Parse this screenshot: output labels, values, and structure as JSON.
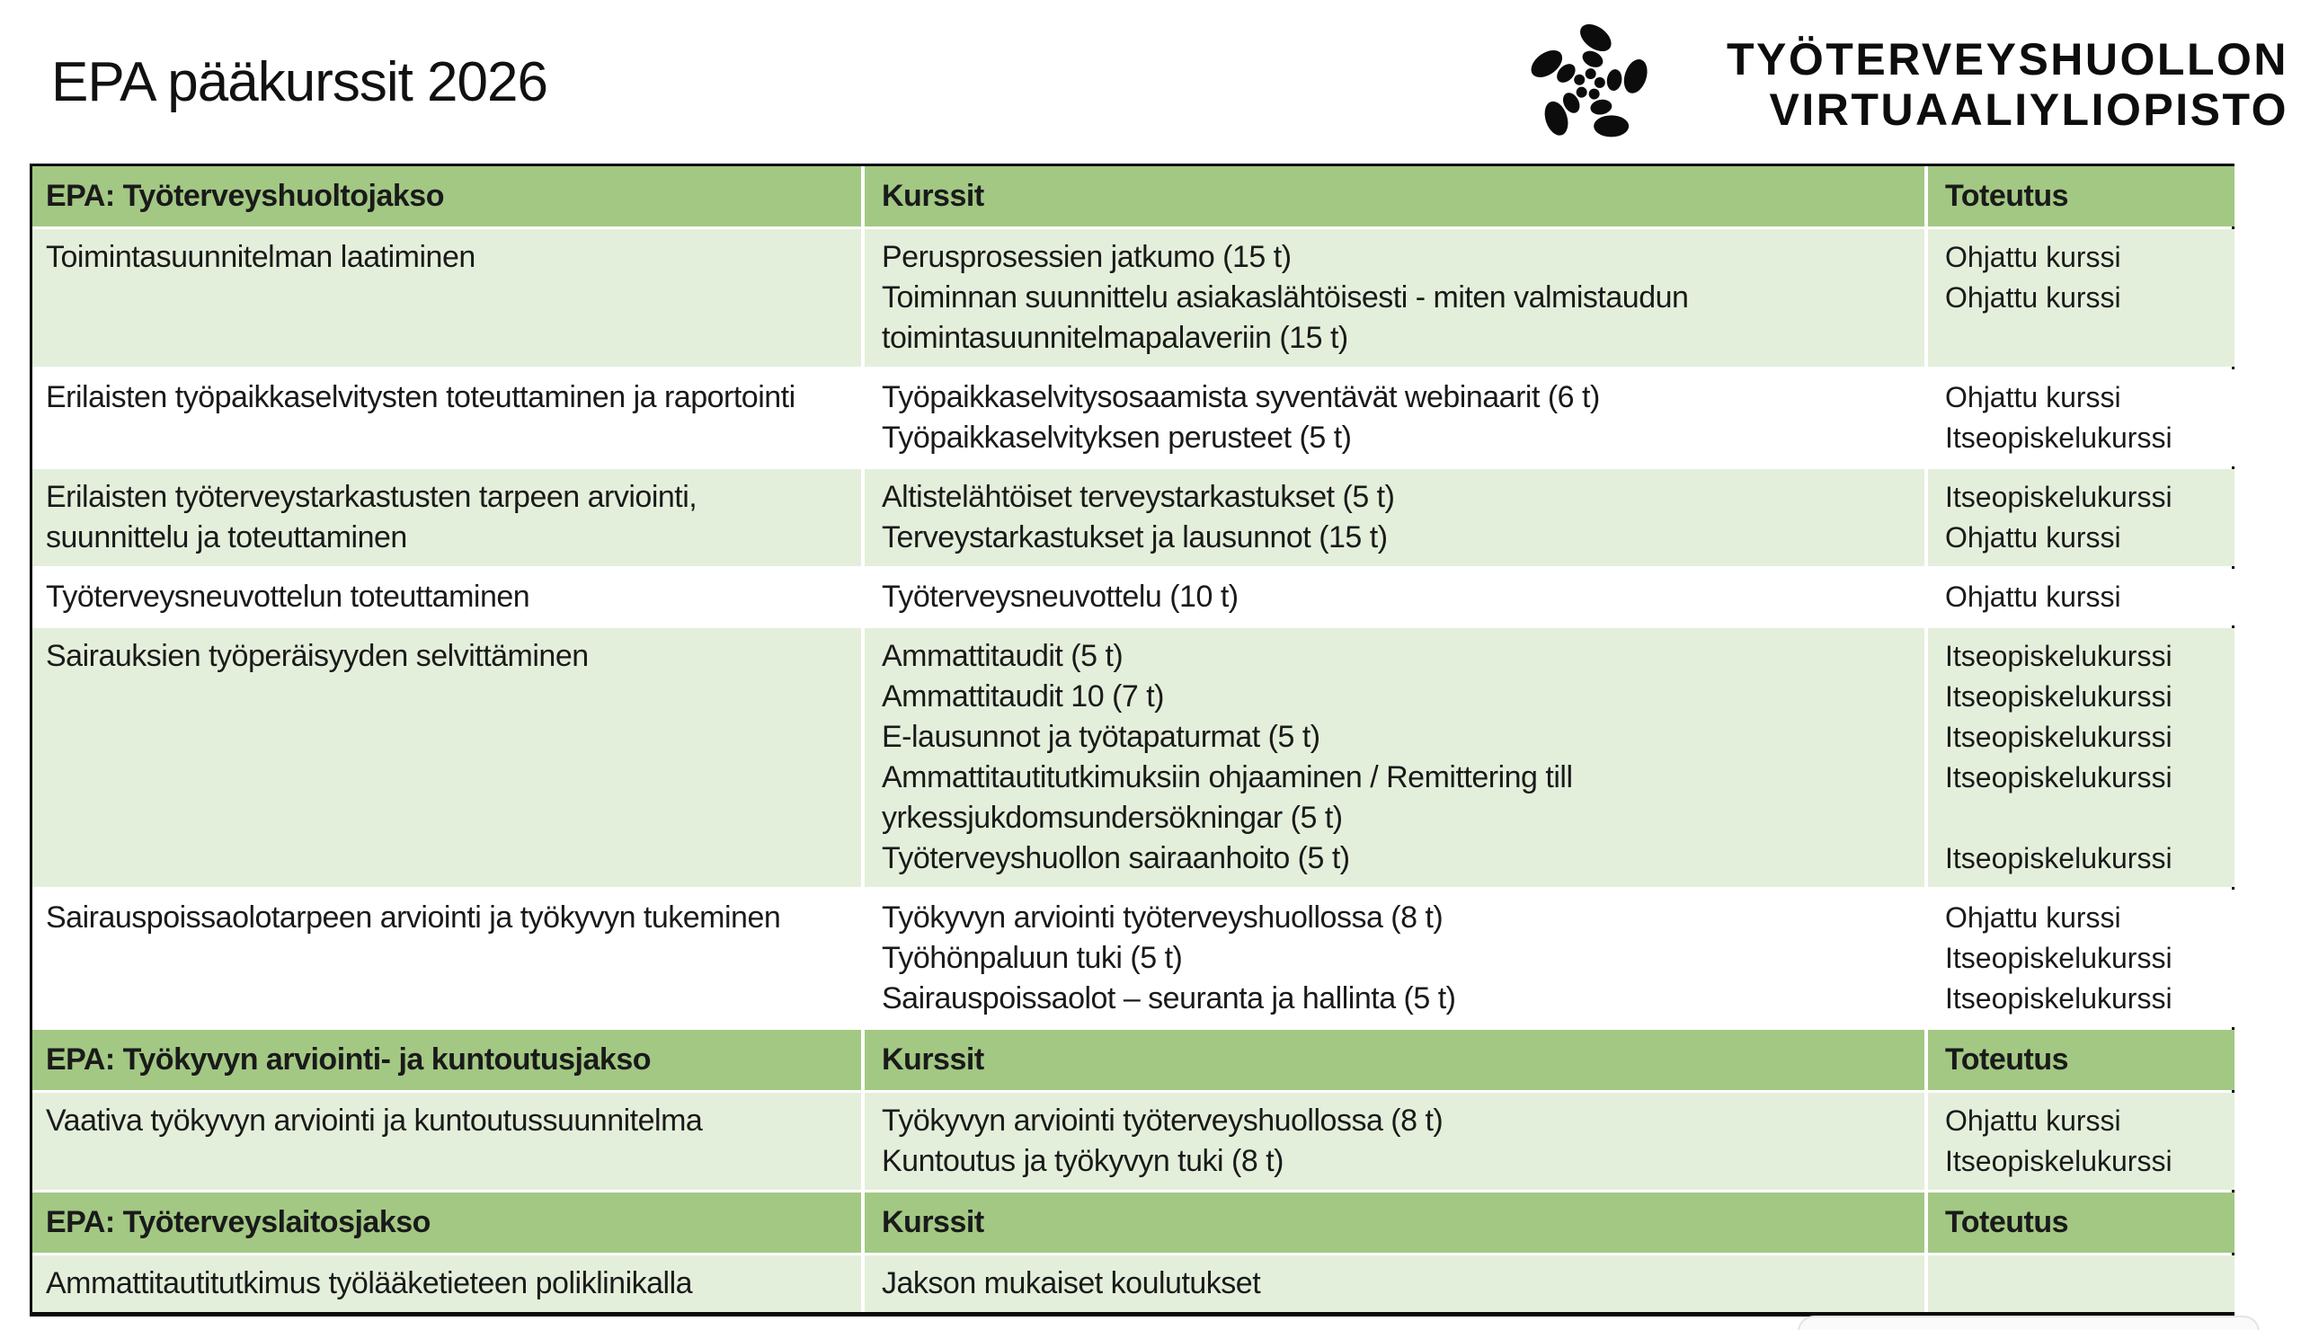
{
  "title": "EPA pääkurssit 2026",
  "logo": {
    "icon": "starfish-logo",
    "line1": "TYÖTERVEYSHUOLLON",
    "line2": "VIRTUAALIYLIOPISTO"
  },
  "colors": {
    "header_green": "#a3c884",
    "row_green": "#e4efdb",
    "row_white": "#ffffff",
    "border_black": "#0a0a0a",
    "text": "#1a1a1a"
  },
  "table": {
    "sections": [
      {
        "header": {
          "jakso": "EPA: Työterveyshuoltojakso",
          "kurssit": "Kurssit",
          "toteutus": "Toteutus"
        },
        "rows": [
          {
            "topic": "Toimintasuunnitelman laatiminen",
            "courses": [
              "Perusprosessien jatkumo (15 t)",
              "Toiminnan suunnittelu asiakaslähtöisesti - miten valmistaudun toimintasuunnitelmapalaveriin (15 t)"
            ],
            "toteutus": [
              "Ohjattu kurssi",
              "Ohjattu kurssi"
            ]
          },
          {
            "topic": "Erilaisten työpaikkaselvitysten toteuttaminen ja raportointi",
            "courses": [
              "Työpaikkaselvitysosaamista syventävät webinaarit (6 t)",
              "Työpaikkaselvityksen perusteet (5 t)"
            ],
            "toteutus": [
              "Ohjattu kurssi",
              "Itseopiskelukurssi"
            ]
          },
          {
            "topic": "Erilaisten työterveystarkastusten tarpeen arviointi, suunnittelu ja toteuttaminen",
            "courses": [
              "Altistelähtöiset terveystarkastukset (5 t)",
              "Terveystarkastukset ja lausunnot (15 t)"
            ],
            "toteutus": [
              "Itseopiskelukurssi",
              "Ohjattu kurssi"
            ]
          },
          {
            "topic": "Työterveysneuvottelun toteuttaminen",
            "courses": [
              "Työterveysneuvottelu (10 t)"
            ],
            "toteutus": [
              "Ohjattu kurssi"
            ]
          },
          {
            "topic": "Sairauksien työperäisyyden selvittäminen",
            "courses": [
              "Ammattitaudit (5 t)",
              "Ammattitaudit 10 (7 t)",
              "E-lausunnot ja työtapaturmat (5 t)",
              "Ammattitautitutkimuksiin ohjaaminen / Remittering till yrkessjukdomsundersökningar (5 t)",
              "Työterveyshuollon sairaanhoito (5 t)"
            ],
            "toteutus": [
              "Itseopiskelukurssi",
              "Itseopiskelukurssi",
              "Itseopiskelukurssi",
              "Itseopiskelukurssi",
              "",
              "Itseopiskelukurssi"
            ]
          },
          {
            "topic": "Sairauspoissaolotarpeen arviointi ja työkyvyn tukeminen",
            "courses": [
              "Työkyvyn arviointi työterveyshuollossa (8 t)",
              "Työhönpaluun tuki (5 t)",
              "Sairauspoissaolot – seuranta ja hallinta (5 t)"
            ],
            "toteutus": [
              "Ohjattu kurssi",
              "Itseopiskelukurssi",
              "Itseopiskelukurssi"
            ]
          }
        ]
      },
      {
        "header": {
          "jakso": "EPA: Työkyvyn arviointi- ja kuntoutusjakso",
          "kurssit": "Kurssit",
          "toteutus": "Toteutus"
        },
        "rows": [
          {
            "topic": "Vaativa työkyvyn arviointi ja kuntoutussuunnitelma",
            "courses": [
              "Työkyvyn arviointi työterveyshuollossa (8 t)",
              "Kuntoutus ja työkyvyn tuki (8 t)"
            ],
            "toteutus": [
              "Ohjattu kurssi",
              "Itseopiskelukurssi"
            ]
          }
        ]
      },
      {
        "header": {
          "jakso": "EPA: Työterveyslaitosjakso",
          "kurssit": "Kurssit",
          "toteutus": "Toteutus"
        },
        "rows": [
          {
            "topic": "Ammattitautitutkimus työlääketieteen poliklinikalla",
            "courses": [
              "Jakson mukaiset koulutukset"
            ],
            "toteutus": []
          }
        ]
      }
    ]
  }
}
